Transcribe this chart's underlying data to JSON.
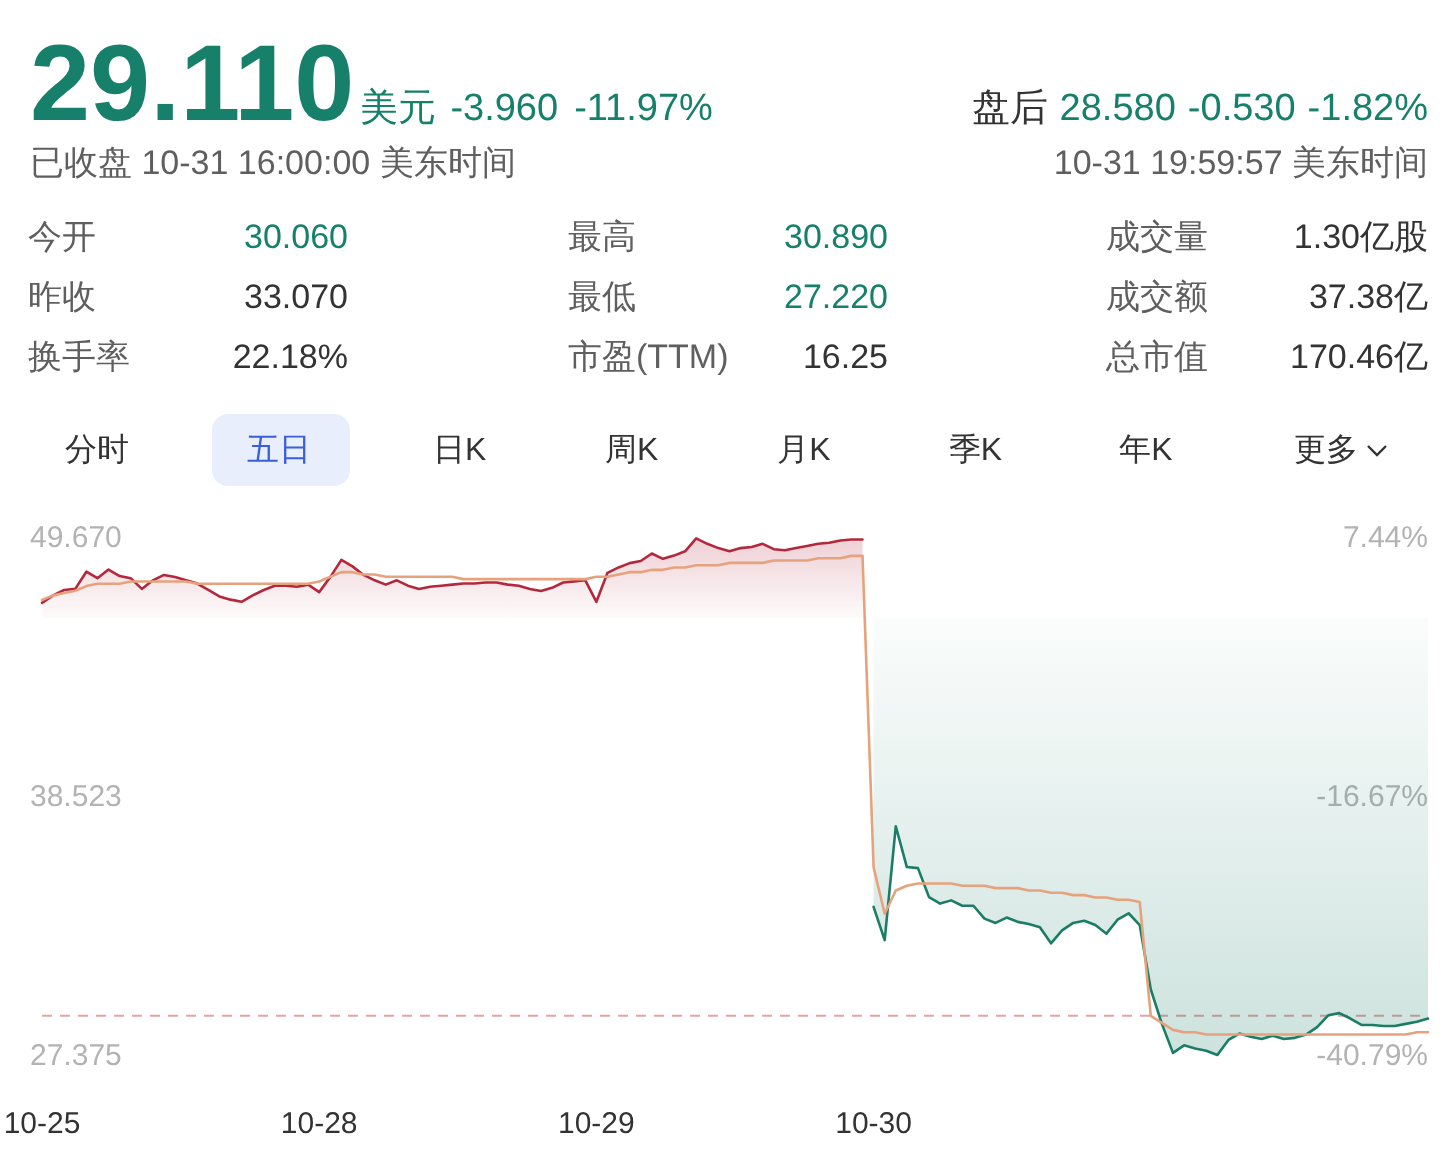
{
  "chart_data": [
    {
      "type": "other",
      "title": "29.110",
      "annotations": [
        "美元",
        "-3.960",
        "-11.97%",
        "已收盘 10-31 16:00:00 美东时间",
        "盘后",
        "28.580",
        "-0.530",
        "-1.82%",
        "10-31 19:59:57 美东时间",
        "今开",
        "30.060",
        "最高",
        "30.890",
        "成交量",
        "1.30亿股",
        "昨收",
        "33.070",
        "最低",
        "27.220",
        "成交额",
        "37.38亿",
        "换手率",
        "22.18%",
        "市盈(TTM)",
        "16.25",
        "总市值",
        "170.46亿",
        "分时",
        "五日",
        "日K",
        "周K",
        "月K",
        "季K",
        "年K",
        "更多"
      ]
    },
    {
      "type": "line",
      "categories": [
        "10-25",
        null,
        null,
        null,
        null,
        null,
        null,
        null,
        null,
        null,
        null,
        null,
        null,
        null,
        null,
        null,
        null,
        null,
        null,
        null,
        null,
        null,
        null,
        null,
        null,
        "10-28",
        null,
        null,
        null,
        null,
        null,
        null,
        null,
        null,
        null,
        null,
        null,
        null,
        null,
        null,
        null,
        null,
        null,
        null,
        null,
        null,
        null,
        null,
        null,
        null,
        "10-29",
        null,
        null,
        null,
        null,
        null,
        null,
        null,
        null,
        null,
        null,
        null,
        null,
        null,
        null,
        null,
        null,
        null,
        null,
        null,
        null,
        null,
        null,
        null,
        null,
        "10-30",
        null,
        null,
        null,
        null,
        null,
        null,
        null,
        null,
        null,
        null,
        null,
        null,
        null,
        null,
        null,
        null,
        null,
        null,
        null,
        null,
        null,
        null,
        null,
        null,
        null,
        null,
        null,
        null,
        null,
        null,
        null,
        null,
        null,
        null,
        null,
        null,
        null,
        null,
        null,
        null,
        null,
        null,
        null,
        null,
        null,
        null,
        null,
        null,
        null,
        null
      ],
      "ylim": [
        27.375,
        49.67
      ],
      "yticks": [
        {
          "value": 49.67,
          "label": "49.670"
        },
        38.523,
        27.375
      ],
      "y2lim": [
        -40.79,
        7.44
      ],
      "y2ticks": [
        {
          "value": 7.44,
          "label": "7.44%"
        },
        {
          "value": -16.67,
          "label": "-16.67%"
        },
        {
          "value": -40.79,
          "label": "-40.79%"
        }
      ],
      "ref_lines": [
        {
          "axis": "y",
          "value": 29.11,
          "color": "#e3a3a6",
          "line_style": "dashed"
        }
      ],
      "series": [
        {
          "type": "area",
          "axis": "y2",
          "color": "#b3283d",
          "values": [
            1.4,
            2.1,
            2.6,
            2.7,
            4.3,
            3.7,
            4.5,
            3.9,
            3.7,
            2.7,
            3.5,
            4.0,
            3.8,
            3.5,
            3.2,
            2.6,
            2.0,
            1.7,
            1.5,
            2.1,
            2.6,
            3.0,
            3.0,
            2.9,
            3.1,
            2.4,
            3.8,
            5.4,
            4.8,
            4.0,
            3.5,
            3.1,
            3.5,
            3.0,
            2.7,
            2.9,
            3.0,
            3.1,
            3.2,
            3.2,
            3.3,
            3.3,
            3.1,
            3.0,
            2.7,
            2.5,
            2.8,
            3.3,
            3.4,
            3.5,
            1.5,
            4.2,
            4.7,
            5.1,
            5.3,
            6.0,
            5.5,
            5.8,
            6.2,
            7.4,
            6.9,
            6.5,
            6.2,
            6.5,
            6.6,
            6.9,
            6.4,
            6.3,
            6.5,
            6.7,
            6.9,
            7.0,
            7.2,
            7.3,
            7.3,
            null,
            null,
            null,
            null,
            null,
            null,
            null,
            null,
            null,
            null,
            null,
            null,
            null,
            null,
            null,
            null,
            null,
            null,
            null,
            null,
            null,
            null,
            null,
            null,
            null,
            null,
            null,
            null,
            null,
            null,
            null,
            null,
            null,
            null,
            null,
            null,
            null,
            null,
            null,
            null,
            null,
            null,
            null,
            null,
            null,
            null,
            null,
            null,
            null,
            null,
            null
          ]
        },
        {
          "type": "area",
          "axis": "y2",
          "color": "#1b7d66",
          "values": [
            null,
            null,
            null,
            null,
            null,
            null,
            null,
            null,
            null,
            null,
            null,
            null,
            null,
            null,
            null,
            null,
            null,
            null,
            null,
            null,
            null,
            null,
            null,
            null,
            null,
            null,
            null,
            null,
            null,
            null,
            null,
            null,
            null,
            null,
            null,
            null,
            null,
            null,
            null,
            null,
            null,
            null,
            null,
            null,
            null,
            null,
            null,
            null,
            null,
            null,
            null,
            null,
            null,
            null,
            null,
            null,
            null,
            null,
            null,
            null,
            null,
            null,
            null,
            null,
            null,
            null,
            null,
            null,
            null,
            null,
            null,
            null,
            null,
            null,
            null,
            -26.9,
            -30.0,
            -19.4,
            -23.2,
            -23.3,
            -26.0,
            -26.6,
            -26.3,
            -26.8,
            -26.8,
            -28.0,
            -28.4,
            -27.9,
            -28.3,
            -28.5,
            -28.8,
            -30.3,
            -29.1,
            -28.4,
            -28.2,
            -28.6,
            -29.4,
            -28.1,
            -27.5,
            -28.6,
            -34.6,
            -37.8,
            -40.5,
            -39.8,
            -40.1,
            -40.3,
            -40.7,
            -39.3,
            -38.7,
            -39.0,
            -39.2,
            -38.9,
            -39.2,
            -39.1,
            -38.8,
            -38.1,
            -37.0,
            -36.8,
            -37.3,
            -37.9,
            -37.9,
            -38.0,
            -38.0,
            -37.8,
            -37.6,
            -37.3
          ]
        },
        {
          "type": "line",
          "color": "#e6a27c",
          "values": [
            47.0,
            47.2,
            47.3,
            47.4,
            47.6,
            47.7,
            47.7,
            47.7,
            47.8,
            47.8,
            47.8,
            47.8,
            47.8,
            47.8,
            47.7,
            47.7,
            47.7,
            47.7,
            47.7,
            47.7,
            47.7,
            47.7,
            47.7,
            47.7,
            47.7,
            47.8,
            48.0,
            48.2,
            48.2,
            48.1,
            48.1,
            48.0,
            48.0,
            48.0,
            48.0,
            48.0,
            48.0,
            48.0,
            47.9,
            47.9,
            47.9,
            47.9,
            47.9,
            47.9,
            47.9,
            47.9,
            47.9,
            47.9,
            47.9,
            47.9,
            48.0,
            48.0,
            48.1,
            48.2,
            48.2,
            48.3,
            48.3,
            48.4,
            48.4,
            48.5,
            48.5,
            48.5,
            48.6,
            48.6,
            48.6,
            48.6,
            48.7,
            48.7,
            48.7,
            48.7,
            48.8,
            48.8,
            48.8,
            48.9,
            48.9,
            35.5,
            33.5,
            34.5,
            34.7,
            34.8,
            34.8,
            34.8,
            34.8,
            34.7,
            34.7,
            34.7,
            34.6,
            34.6,
            34.6,
            34.5,
            34.5,
            34.4,
            34.4,
            34.3,
            34.3,
            34.2,
            34.2,
            34.1,
            34.1,
            34.0,
            29.1,
            28.8,
            28.5,
            28.4,
            28.4,
            28.3,
            28.3,
            28.3,
            28.3,
            28.3,
            28.3,
            28.3,
            28.3,
            28.3,
            28.3,
            28.3,
            28.3,
            28.3,
            28.3,
            28.3,
            28.3,
            28.3,
            28.3,
            28.3,
            28.4,
            28.4
          ]
        }
      ]
    }
  ]
}
